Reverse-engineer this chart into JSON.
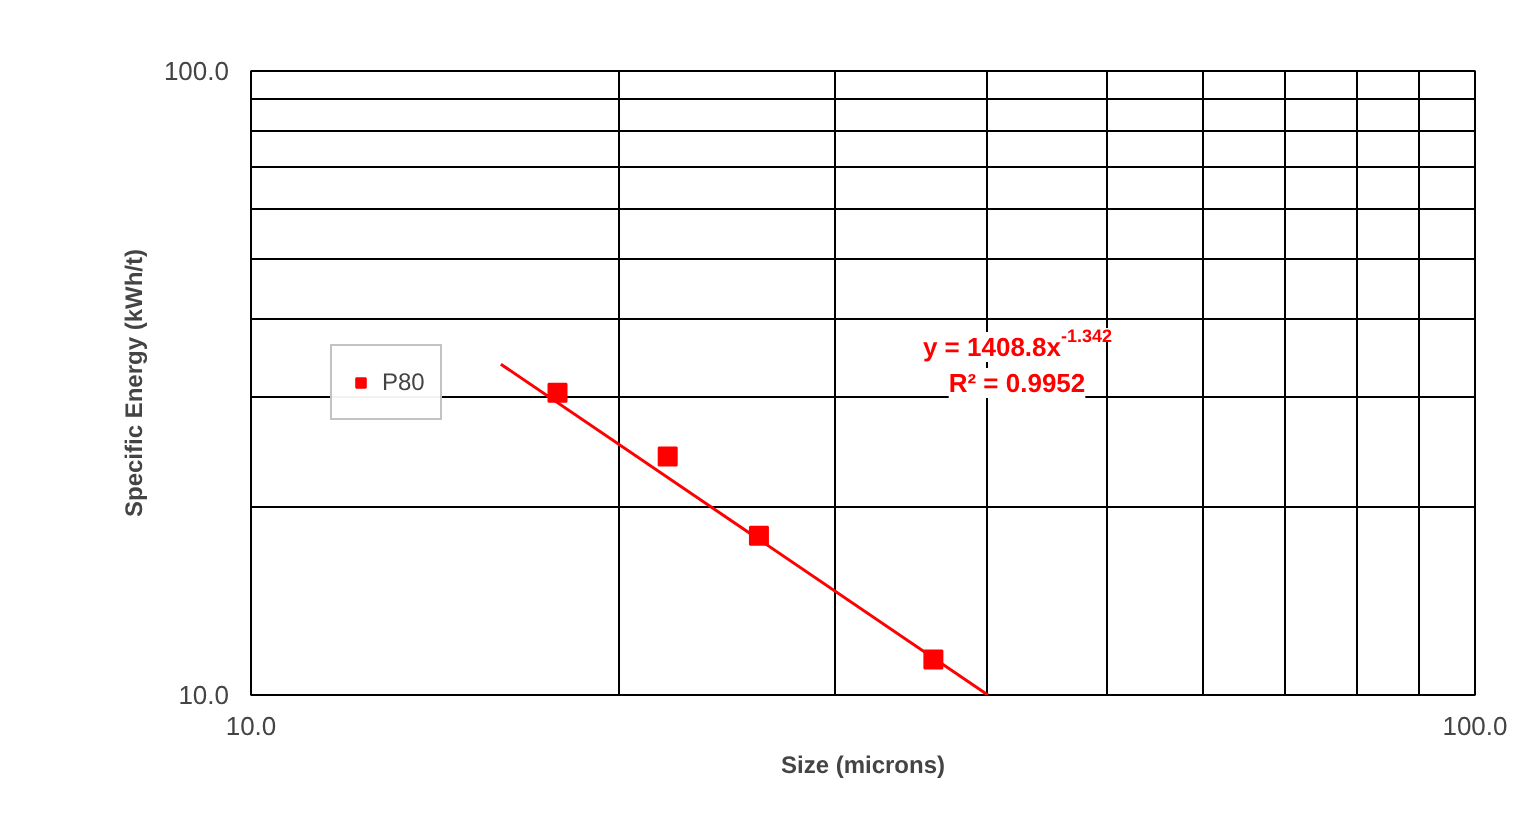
{
  "chart_data": {
    "type": "scatter",
    "xlabel": "Size (microns)",
    "ylabel": "Specific Energy (kWh/t)",
    "log": "xy",
    "xlim": [
      10,
      100
    ],
    "ylim": [
      10,
      100
    ],
    "xticks": [
      {
        "value": 10,
        "label": "10.0"
      },
      {
        "value": 20,
        "label": null
      },
      {
        "value": 30,
        "label": null
      },
      {
        "value": 40,
        "label": null
      },
      {
        "value": 50,
        "label": null
      },
      {
        "value": 60,
        "label": null
      },
      {
        "value": 70,
        "label": null
      },
      {
        "value": 80,
        "label": null
      },
      {
        "value": 90,
        "label": null
      },
      {
        "value": 100,
        "label": "100.0"
      }
    ],
    "yticks": [
      {
        "value": 10,
        "label": "10.0"
      },
      {
        "value": 20,
        "label": null
      },
      {
        "value": 30,
        "label": null
      },
      {
        "value": 40,
        "label": null
      },
      {
        "value": 50,
        "label": null
      },
      {
        "value": 60,
        "label": null
      },
      {
        "value": 70,
        "label": null
      },
      {
        "value": 80,
        "label": null
      },
      {
        "value": 90,
        "label": null
      },
      {
        "value": 100,
        "label": "100.0"
      }
    ],
    "grid": true,
    "legend": "left",
    "series": [
      {
        "name": "P80",
        "marker": "square",
        "color": "#ff0000",
        "x": [
          17.8,
          21.9,
          26.0,
          36.1
        ],
        "values": [
          30.5,
          24.1,
          18.0,
          11.4
        ]
      },
      {
        "type": "line",
        "color": "#ff0000",
        "x": [
          16,
          40
        ],
        "values": [
          33.9,
          10.0
        ]
      }
    ],
    "annotations": [
      "y = 1408.8x$^{-1.342}$",
      "R² = 0.9952"
    ]
  }
}
